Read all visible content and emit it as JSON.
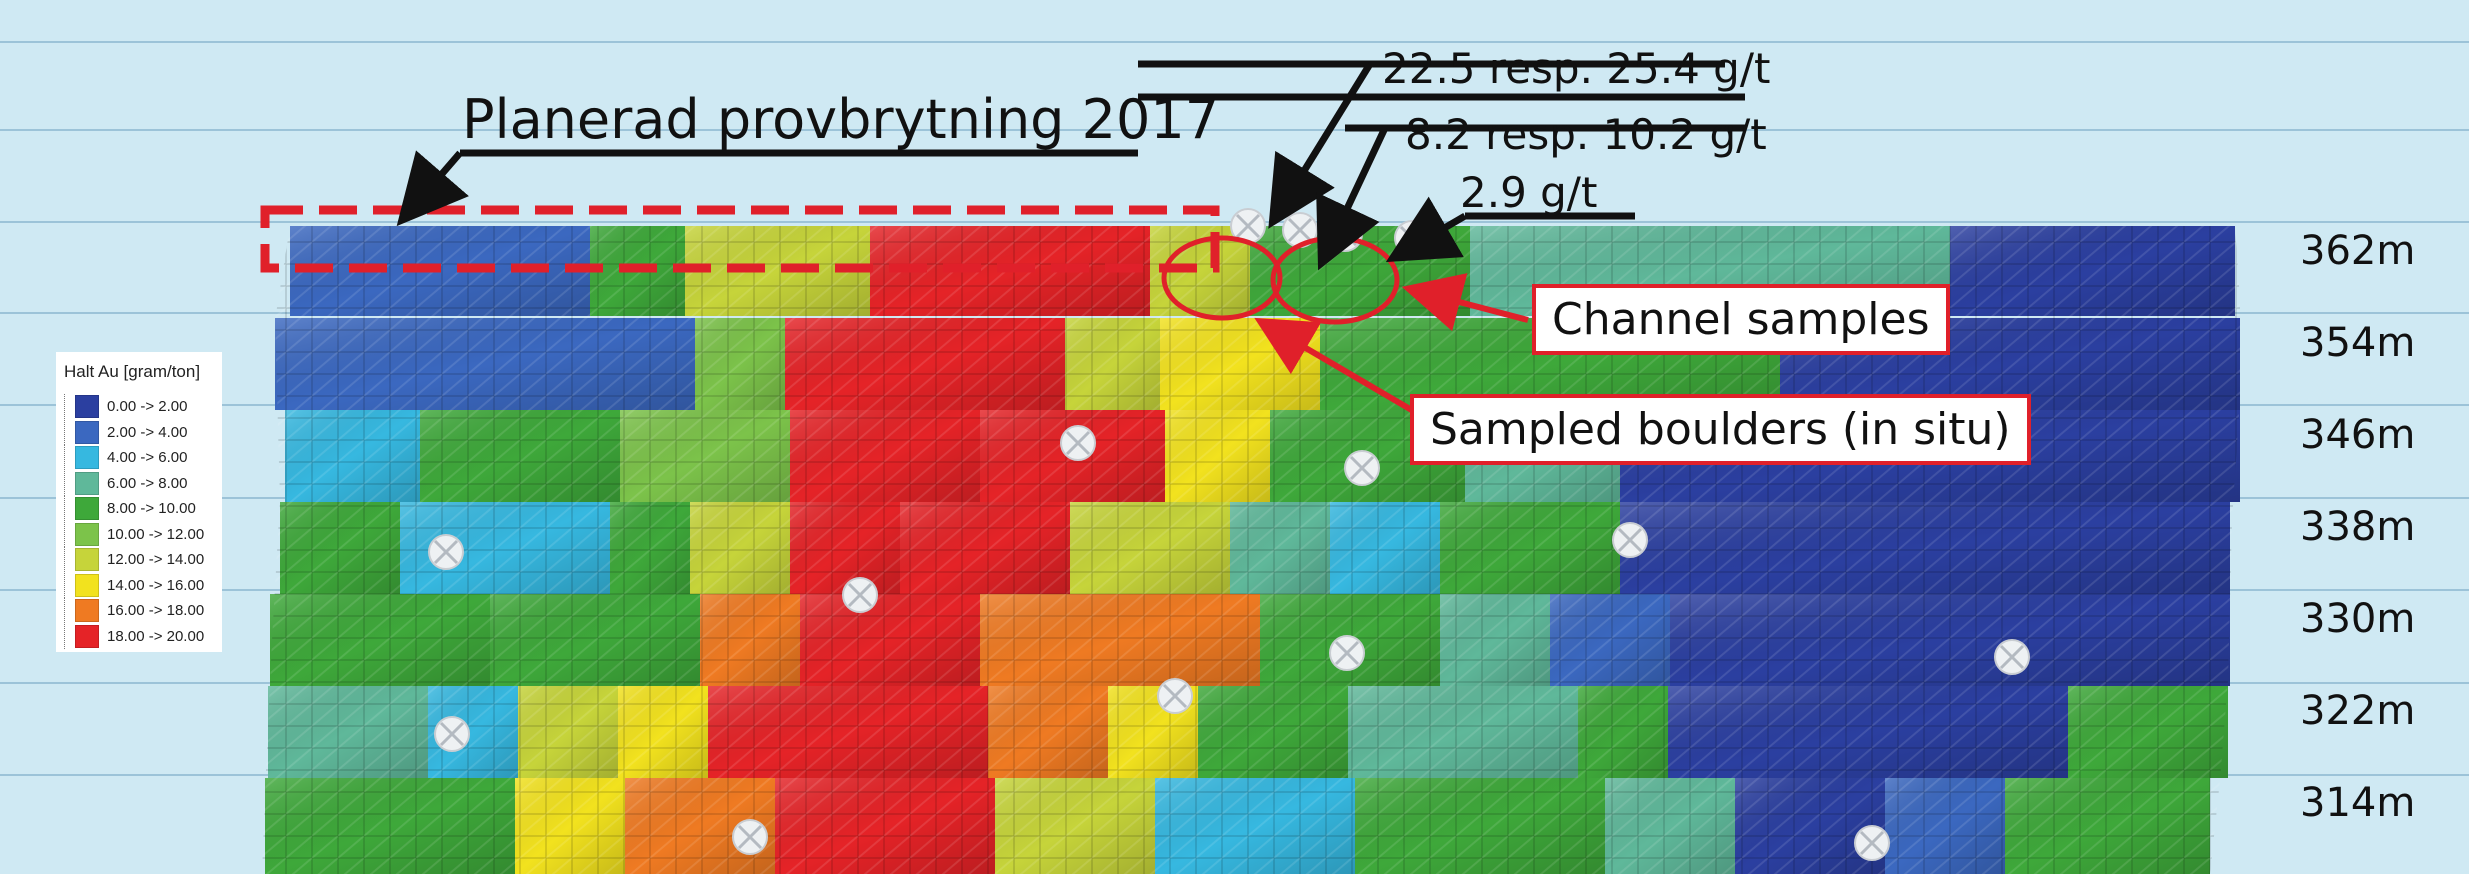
{
  "annotations": {
    "planned": "Planerad provbrytning 2017",
    "label1": "22.5 resp. 25.4 g/t",
    "label2": "8.2 resp. 10.2 g/t",
    "label3": "2.9 g/t",
    "channel": "Channel samples",
    "boulders": "Sampled boulders (in situ)"
  },
  "depths": [
    "362m",
    "354m",
    "346m",
    "338m",
    "330m",
    "322m",
    "314m"
  ],
  "legend": {
    "title": "Halt Au [gram/ton]",
    "items": [
      {
        "label": "0.00 -> 2.00",
        "color": "#2b3fa0"
      },
      {
        "label": "2.00 -> 4.00",
        "color": "#3b68c0"
      },
      {
        "label": "4.00 -> 6.00",
        "color": "#36b8e0"
      },
      {
        "label": "6.00 -> 8.00",
        "color": "#5fb89a"
      },
      {
        "label": "8.00 -> 10.00",
        "color": "#3ea83a"
      },
      {
        "label": "10.00 -> 12.00",
        "color": "#7cc34a"
      },
      {
        "label": "12.00 -> 14.00",
        "color": "#c6d43a"
      },
      {
        "label": "14.00 -> 16.00",
        "color": "#f2e21e"
      },
      {
        "label": "16.00 -> 18.00",
        "color": "#ef7a22"
      },
      {
        "label": "18.00 -> 20.00",
        "color": "#e52327"
      }
    ]
  },
  "colors": {
    "background": "#cfe9f3",
    "accent": "#e0202a"
  }
}
